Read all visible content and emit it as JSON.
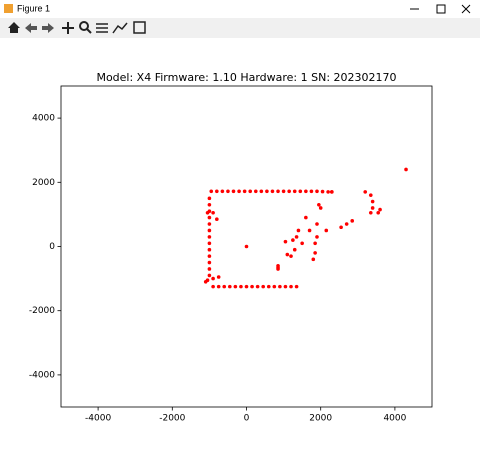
{
  "window": {
    "title": "Figure 1"
  },
  "chart_data": {
    "type": "scatter",
    "title": "Model: X4 Firmware: 1.10 Hardware: 1 SN: 202302170",
    "color": "#ff0000",
    "xlim": [
      -5000,
      5000
    ],
    "ylim": [
      -5000,
      5000
    ],
    "xticks": [
      -4000,
      -2000,
      0,
      2000,
      4000
    ],
    "yticks": [
      -4000,
      -2000,
      0,
      2000,
      4000
    ],
    "x": [
      -950,
      -800,
      -650,
      -500,
      -350,
      -200,
      -50,
      100,
      250,
      400,
      550,
      700,
      850,
      1000,
      1150,
      1300,
      1450,
      1600,
      1750,
      1900,
      2050,
      2200,
      2300,
      -1000,
      -1000,
      -1000,
      -1000,
      -1000,
      -1000,
      -1000,
      -1000,
      -1000,
      -1000,
      -1000,
      -1000,
      -1000,
      -1050,
      -1050,
      -900,
      -800,
      -900,
      -750,
      -600,
      -450,
      -300,
      -150,
      0,
      150,
      300,
      450,
      600,
      750,
      900,
      1050,
      1200,
      1350,
      -1100,
      -900,
      -750,
      0,
      850,
      850,
      850,
      1050,
      1100,
      1200,
      1250,
      1300,
      1350,
      1400,
      1500,
      1600,
      1700,
      1800,
      1850,
      1850,
      1900,
      1900,
      1950,
      2000,
      2150,
      2300,
      2550,
      2700,
      2850,
      3200,
      3350,
      3400,
      3400,
      3350,
      3550,
      3600,
      4300
    ],
    "y": [
      1720,
      1720,
      1720,
      1720,
      1720,
      1720,
      1720,
      1720,
      1720,
      1720,
      1720,
      1720,
      1720,
      1720,
      1720,
      1720,
      1720,
      1720,
      1720,
      1720,
      1710,
      1700,
      1700,
      1500,
      1300,
      1100,
      900,
      700,
      500,
      300,
      100,
      -100,
      -300,
      -500,
      -700,
      -900,
      -1050,
      1050,
      1050,
      850,
      -1250,
      -1250,
      -1250,
      -1250,
      -1250,
      -1250,
      -1250,
      -1250,
      -1250,
      -1250,
      -1250,
      -1250,
      -1250,
      -1250,
      -1250,
      -1250,
      -1100,
      -1000,
      -950,
      0,
      -650,
      -700,
      -600,
      150,
      -250,
      -300,
      200,
      -100,
      300,
      500,
      100,
      900,
      500,
      -400,
      -200,
      100,
      300,
      700,
      1300,
      1200,
      500,
      1700,
      600,
      700,
      800,
      1700,
      1600,
      1400,
      1200,
      1050,
      1050,
      1150,
      2400
    ]
  }
}
